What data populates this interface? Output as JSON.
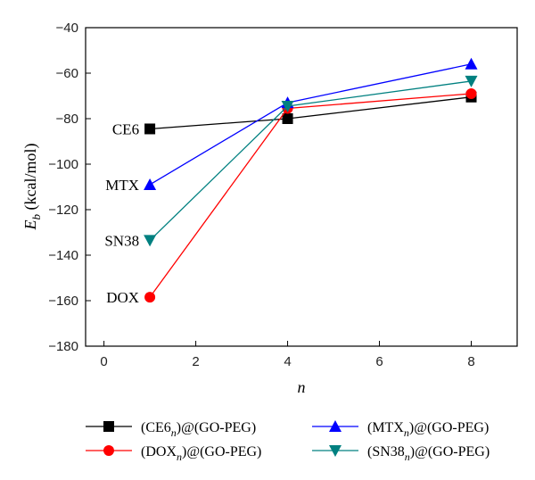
{
  "chart_data": {
    "type": "line",
    "xlabel": "n",
    "ylabel": "E_b (kcal/mol)",
    "ylabel_main": "E",
    "ylabel_sub": "b",
    "ylabel_unit": " (kcal/mol)",
    "xlim": [
      -0.4,
      9.0
    ],
    "ylim": [
      -180,
      -40
    ],
    "xticks": [
      0,
      2,
      4,
      6,
      8
    ],
    "yticks": [
      -180,
      -160,
      -140,
      -120,
      -100,
      -80,
      -60,
      -40
    ],
    "xtick_labels": [
      "0",
      "2",
      "4",
      "6",
      "8"
    ],
    "ytick_labels": [
      "−180",
      "−160",
      "−140",
      "−120",
      "−100",
      "−80",
      "−60",
      "−40"
    ],
    "x": [
      1,
      4,
      8
    ],
    "grid": false,
    "legend_position": "bottom",
    "series": [
      {
        "name": "(CE6n)@(GO-PEG)",
        "legend_pre": "(CE6",
        "legend_sub": "n",
        "legend_post": ")@(GO-PEG)",
        "values": [
          -84.5,
          -80,
          -70.5
        ],
        "color": "#000000",
        "marker": "square"
      },
      {
        "name": "(DOXn)@(GO-PEG)",
        "legend_pre": "(DOX",
        "legend_sub": "n",
        "legend_post": ")@(GO-PEG)",
        "values": [
          -158.5,
          -75.5,
          -69
        ],
        "color": "#ff0000",
        "marker": "circle"
      },
      {
        "name": "(MTXn)@(GO-PEG)",
        "legend_pre": "(MTX",
        "legend_sub": "n",
        "legend_post": ")@(GO-PEG)",
        "values": [
          -109,
          -73,
          -56
        ],
        "color": "#0000ff",
        "marker": "triangle-up"
      },
      {
        "name": "(SN38n)@(GO-PEG)",
        "legend_pre": "(SN38",
        "legend_sub": "n",
        "legend_post": ")@(GO-PEG)",
        "values": [
          -133.5,
          -74.5,
          -63.5
        ],
        "color": "#008080",
        "marker": "triangle-down"
      }
    ],
    "annotations": [
      {
        "text": "CE6",
        "x": 1,
        "y": -84.5
      },
      {
        "text": "MTX",
        "x": 1,
        "y": -109
      },
      {
        "text": "SN38",
        "x": 1,
        "y": -133.5
      },
      {
        "text": "DOX",
        "x": 1,
        "y": -158.5
      }
    ]
  }
}
